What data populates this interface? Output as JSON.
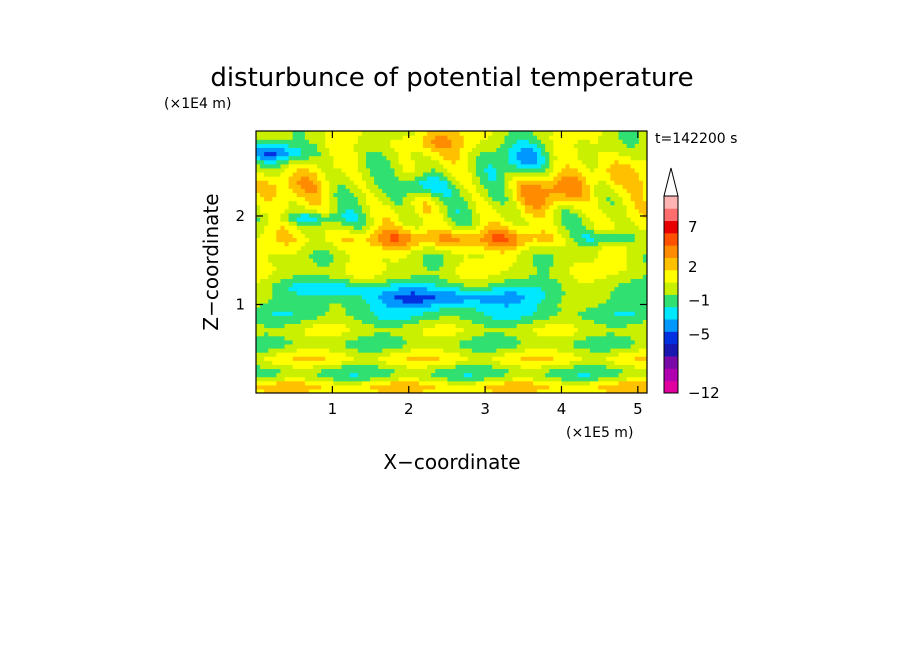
{
  "chart_data": {
    "type": "heatmap",
    "title": "disturbunce of potential temperature",
    "xlabel": "X−coordinate",
    "ylabel": "Z−coordinate",
    "x_scale_label": "(×1E5 m)",
    "y_scale_label": "(×1E4 m)",
    "time_label": "t=142200 s",
    "xlim": [
      0,
      5.12
    ],
    "ylim": [
      0,
      2.96
    ],
    "x_ticks": [
      {
        "value": 1,
        "label": "1"
      },
      {
        "value": 2,
        "label": "2"
      },
      {
        "value": 3,
        "label": "3"
      },
      {
        "value": 4,
        "label": "4"
      },
      {
        "value": 5,
        "label": "5"
      }
    ],
    "y_ticks": [
      {
        "value": 1,
        "label": "1"
      },
      {
        "value": 2,
        "label": "2"
      }
    ],
    "colorbar": {
      "colors": [
        "#e000a0",
        "#b000b0",
        "#7a0aa8",
        "#1818b0",
        "#0030e0",
        "#0098ff",
        "#00e8ff",
        "#30e070",
        "#c8f000",
        "#ffff00",
        "#ffc000",
        "#ff8c00",
        "#ff5000",
        "#e80000",
        "#ff6e6e",
        "#ffb4b4"
      ],
      "labels": [
        {
          "level": 0,
          "label": "−12"
        },
        {
          "level": 4.75,
          "label": "−5"
        },
        {
          "level": 7.5,
          "label": "−1"
        },
        {
          "level": 10.25,
          "label": "2"
        },
        {
          "level": 13.5,
          "label": "7"
        }
      ],
      "extend": "max",
      "extend_color": "#ffffff"
    }
  }
}
